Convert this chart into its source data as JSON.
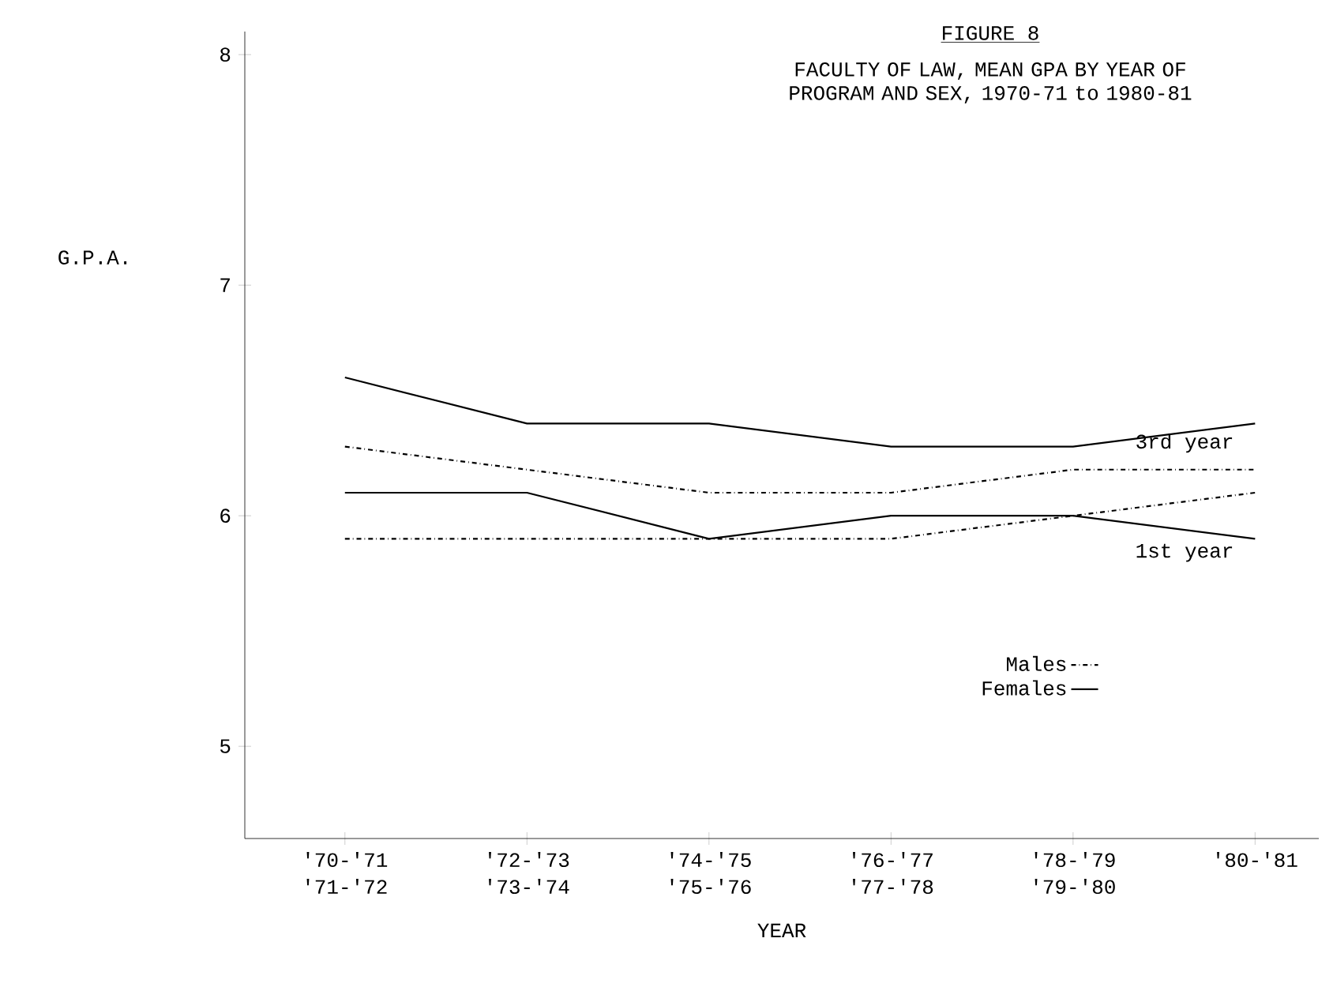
{
  "chart_data": {
    "type": "line",
    "title": "FIGURE 8",
    "subtitle": "FACULTY OF LAW, MEAN GPA BY YEAR OF PROGRAM AND SEX, 1970-71 to 1980-81",
    "xlabel": "YEAR",
    "ylabel": "G.P.A.",
    "categories": [
      "'70-'71 '71-'72",
      "'72-'73 '73-'74",
      "'74-'75 '75-'76",
      "'76-'77 '77-'78",
      "'78-'79 '79-'80",
      "'80-'81"
    ],
    "series": [
      {
        "name": "Males",
        "color": "#000000",
        "line_style": "dashdot",
        "values": [
          6.3,
          6.2,
          6.1,
          6.1,
          6.2,
          6.2
        ]
      },
      {
        "name": "Females",
        "color": "#000000",
        "line_style": "solid",
        "values": [
          6.6,
          6.4,
          6.4,
          6.3,
          6.3,
          6.4
        ]
      },
      {
        "color": "#000000",
        "line_style": "dashdot",
        "values": [
          5.9,
          5.9,
          5.9,
          5.9,
          6.0,
          6.1
        ]
      },
      {
        "color": "#000000",
        "line_style": "solid",
        "values": [
          6.1,
          6.1,
          5.9,
          6.0,
          6.0,
          5.9
        ]
      }
    ],
    "annotations": [
      "3rd year",
      "1st year"
    ],
    "ylim": [
      4.6,
      8.1
    ],
    "yticks": [
      5,
      6,
      7,
      8
    ],
    "grid": false,
    "legend": "bottom right",
    "marker": "none"
  }
}
